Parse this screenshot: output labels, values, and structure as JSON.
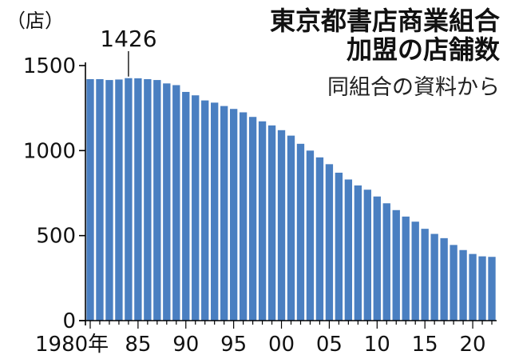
{
  "header": {
    "title_line1": "東京都書店商業組合",
    "title_line2": "加盟の店舗数",
    "source": "同組合の資料から"
  },
  "chart_data": {
    "type": "bar",
    "unit_label": "（店）",
    "annotation": {
      "label": "1426",
      "x": 1984,
      "value": 1426
    },
    "x": [
      1980,
      1981,
      1982,
      1983,
      1984,
      1985,
      1986,
      1987,
      1988,
      1989,
      1990,
      1991,
      1992,
      1993,
      1994,
      1995,
      1996,
      1997,
      1998,
      1999,
      2000,
      2001,
      2002,
      2003,
      2004,
      2005,
      2006,
      2007,
      2008,
      2009,
      2010,
      2011,
      2012,
      2013,
      2014,
      2015,
      2016,
      2017,
      2018,
      2019,
      2020,
      2021,
      2022
    ],
    "values": [
      1420,
      1420,
      1415,
      1418,
      1426,
      1425,
      1420,
      1415,
      1395,
      1385,
      1345,
      1325,
      1295,
      1282,
      1262,
      1245,
      1225,
      1198,
      1172,
      1148,
      1120,
      1088,
      1040,
      1000,
      960,
      920,
      870,
      830,
      795,
      770,
      730,
      690,
      650,
      612,
      582,
      540,
      510,
      485,
      445,
      415,
      392,
      378,
      375
    ],
    "tick_labels": [
      "1980年",
      "85",
      "90",
      "95",
      "00",
      "05",
      "10",
      "15",
      "20"
    ],
    "tick_positions": [
      1980,
      1985,
      1990,
      1995,
      2000,
      2005,
      2010,
      2015,
      2020
    ],
    "y_ticks": [
      0,
      500,
      1000,
      1500
    ],
    "y_tick_labels": [
      "0",
      "500",
      "1000",
      "1500"
    ],
    "ylim": [
      0,
      1500
    ],
    "bar_color": "#4a7fc1",
    "axis_color": "#000000",
    "grid": false
  }
}
